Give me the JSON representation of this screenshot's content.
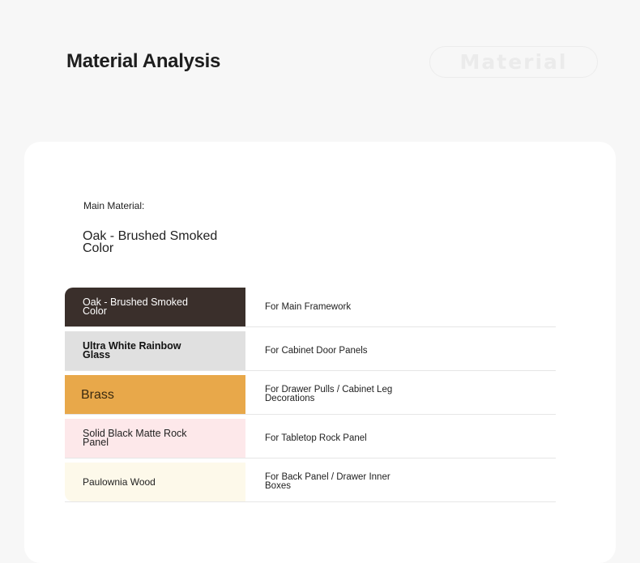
{
  "header": {
    "title": "Material Analysis",
    "badge": "Material"
  },
  "main_material": {
    "label": "Main Material:",
    "value": "Oak - Brushed Smoked Color"
  },
  "materials": [
    {
      "name": "Oak - Brushed Smoked Color",
      "usage": "For Main Framework",
      "bg": "#3a2f2b",
      "fg": "#ffffff"
    },
    {
      "name": "Ultra White Rainbow Glass",
      "usage": "For Cabinet Door Panels",
      "bg": "#e0e0e0",
      "fg": "#111111"
    },
    {
      "name": "Brass",
      "usage": "For Drawer Pulls / Cabinet Leg Decorations",
      "bg": "#e8a84a",
      "fg": "#3a2a10"
    },
    {
      "name": "Solid Black Matte Rock Panel",
      "usage": "For Tabletop Rock Panel",
      "bg": "#fde8ea",
      "fg": "#222222"
    },
    {
      "name": "Paulownia Wood",
      "usage": "For Back Panel / Drawer Inner Boxes",
      "bg": "#fdf9ea",
      "fg": "#222222"
    }
  ]
}
